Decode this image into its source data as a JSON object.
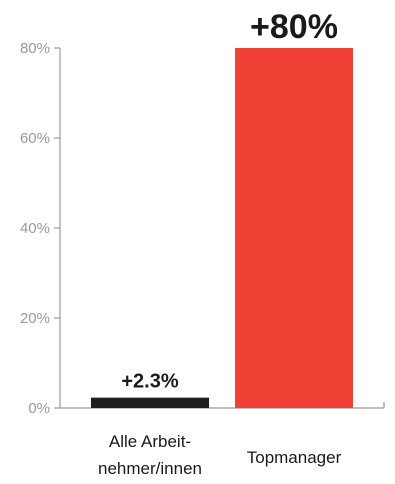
{
  "chart_data": {
    "type": "bar",
    "categories": [
      [
        "Alle Arbeit-",
        "nehmer/innen"
      ],
      [
        "Topmanager"
      ]
    ],
    "values": [
      2.3,
      80
    ],
    "data_labels": [
      "+2.3%",
      "+80%"
    ],
    "bar_colors": [
      "#1e1e1e",
      "#ef4135"
    ],
    "ylim": [
      0,
      80
    ],
    "y_ticks": [
      0,
      20,
      40,
      60,
      80
    ],
    "y_tick_labels": [
      "0%",
      "20%",
      "40%",
      "60%",
      "80%"
    ],
    "grid": false,
    "title": "",
    "xlabel": "",
    "ylabel": ""
  }
}
